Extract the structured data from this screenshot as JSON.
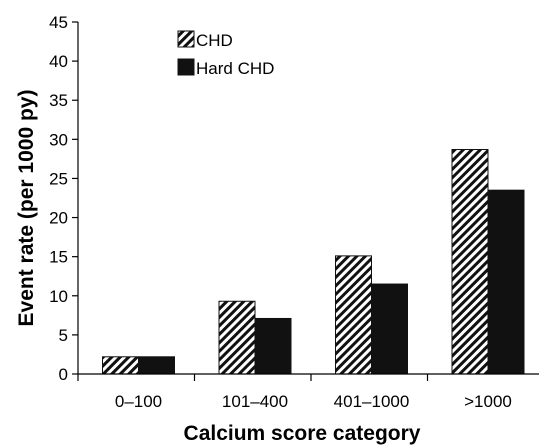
{
  "chart_data": {
    "type": "bar",
    "title": "",
    "xlabel": "Calcium score category",
    "ylabel": "Event rate (per 1000 py)",
    "categories": [
      "0–100",
      "101–400",
      "401–1000",
      ">1000"
    ],
    "series": [
      {
        "name": "CHD",
        "values": [
          2.2,
          9.3,
          15.1,
          28.7
        ],
        "fill": "hatched"
      },
      {
        "name": "Hard CHD",
        "values": [
          2.2,
          7.1,
          11.5,
          23.5
        ],
        "fill": "solid"
      }
    ],
    "ylim": [
      0,
      45
    ],
    "yticks": [
      0,
      5,
      10,
      15,
      20,
      25,
      30,
      35,
      40,
      45
    ],
    "grid": false,
    "legend_position": "top-left",
    "colors": {
      "bar_solid": "#111111",
      "hatch": "#111111",
      "axis": "#000000"
    }
  }
}
